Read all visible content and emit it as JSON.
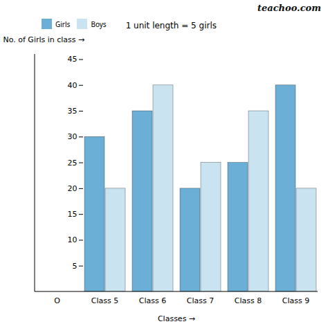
{
  "chart_data": {
    "type": "bar",
    "categories": [
      "O",
      "Class 5",
      "Class 6",
      "Class 7",
      "Class 8",
      "Class 9"
    ],
    "series": [
      {
        "name": "Girls",
        "color": "#6BAED6",
        "values": [
          null,
          30,
          35,
          20,
          25,
          40
        ]
      },
      {
        "name": "Boys",
        "color": "#C9E3F0",
        "values": [
          null,
          20,
          40,
          25,
          35,
          20
        ]
      }
    ],
    "xlabel": "Classes →",
    "ylabel": "No. of Girls in class →",
    "ylim": [
      0,
      46
    ],
    "yticks": [
      5,
      10,
      15,
      20,
      25,
      30,
      35,
      40,
      45
    ],
    "legend": "top",
    "annotations": [
      "1 unit length = 5 girls",
      "teachoo.com"
    ]
  }
}
